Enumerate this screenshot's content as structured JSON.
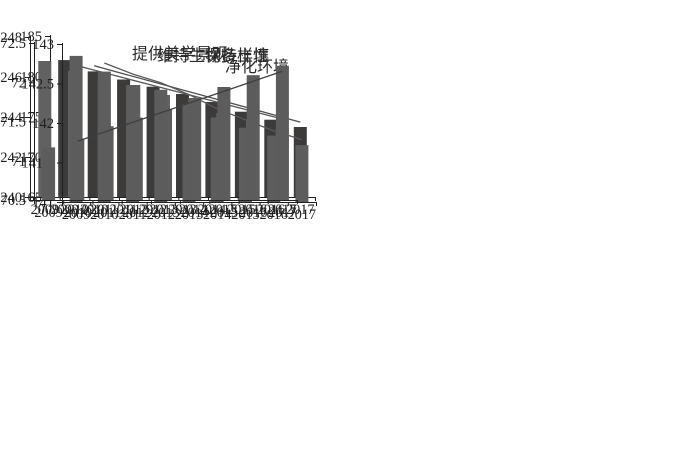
{
  "page": {
    "background": "#ffffff",
    "axis_color": "#1f1f1f",
    "text_color": "#1f1f1f",
    "title_color": "#2b2b2b"
  },
  "chart_data": [
    {
      "type": "bar",
      "title": "净化环境",
      "categories": [
        "2009",
        "2010",
        "2011",
        "2012",
        "2013",
        "2014",
        "2015",
        "2016",
        "2017"
      ],
      "values": [
        182.0,
        180.6,
        179.6,
        178.7,
        177.8,
        176.8,
        175.6,
        174.6,
        173.7
      ],
      "xlabel": "",
      "ylabel": "",
      "ylim": [
        165,
        185
      ],
      "ytick_step": 5,
      "grid": false,
      "legend": "none",
      "bar_color": "#3d3a3a",
      "trend_color": "#4f4f4f",
      "trend": {
        "years": [
          2010,
          2017
        ],
        "values": [
          181.3,
          174.3
        ]
      }
    },
    {
      "type": "bar",
      "title": "保持土壤",
      "categories": [
        "2009",
        "2010",
        "2011",
        "2012",
        "2013",
        "2014",
        "2015",
        "2016",
        "2017"
      ],
      "values": [
        246.8,
        246.3,
        245.8,
        245.6,
        245.1,
        244.7,
        244.2,
        243.9,
        243.5
      ],
      "xlabel": "",
      "ylabel": "",
      "ylim": [
        240,
        248
      ],
      "ytick_step": 2,
      "grid": false,
      "legend": "none",
      "bar_color": "#616161",
      "trend_color": "#5a5a5a",
      "trend": {
        "years": [
          2010,
          2017
        ],
        "values": [
          246.6,
          243.9
        ]
      }
    },
    {
      "type": "bar",
      "title": "维持生物多样性",
      "categories": [
        "2009",
        "2010",
        "2011",
        "2012",
        "2013",
        "2014",
        "2015",
        "2016",
        "2017"
      ],
      "values": [
        142.85,
        142.65,
        142.48,
        142.42,
        142.24,
        142.07,
        141.94,
        141.84,
        141.72
      ],
      "xlabel": "",
      "ylabel": "",
      "ylim": [
        141,
        143
      ],
      "ytick_step": 0.5,
      "grid": false,
      "legend": "none",
      "bar_color": "#5d5d5d",
      "trend_color": "#5a5a5a",
      "trend": {
        "years": [
          2010,
          2011,
          2012,
          2013,
          2014,
          2015,
          2016,
          2017
        ],
        "values": [
          142.76,
          142.62,
          142.51,
          142.36,
          142.18,
          142.04,
          141.9,
          141.79
        ]
      }
    },
    {
      "type": "bar",
      "title": "提供美学景观",
      "categories": [
        "2009",
        "2010",
        "2011",
        "2012",
        "2013",
        "2014",
        "2015",
        "2016",
        "2017"
      ],
      "values": [
        71.17,
        71.28,
        71.44,
        71.55,
        71.66,
        71.8,
        71.94,
        72.09,
        72.21
      ],
      "xlabel": "",
      "ylabel": "",
      "ylim": [
        70.5,
        72.5
      ],
      "ytick_step": 0.5,
      "grid": false,
      "legend": "none",
      "bar_color": "#5c5c5c",
      "trend_color": "#3f3f3f",
      "trend": {
        "years": [
          2010,
          2017
        ],
        "values": [
          71.25,
          72.14
        ]
      }
    }
  ]
}
